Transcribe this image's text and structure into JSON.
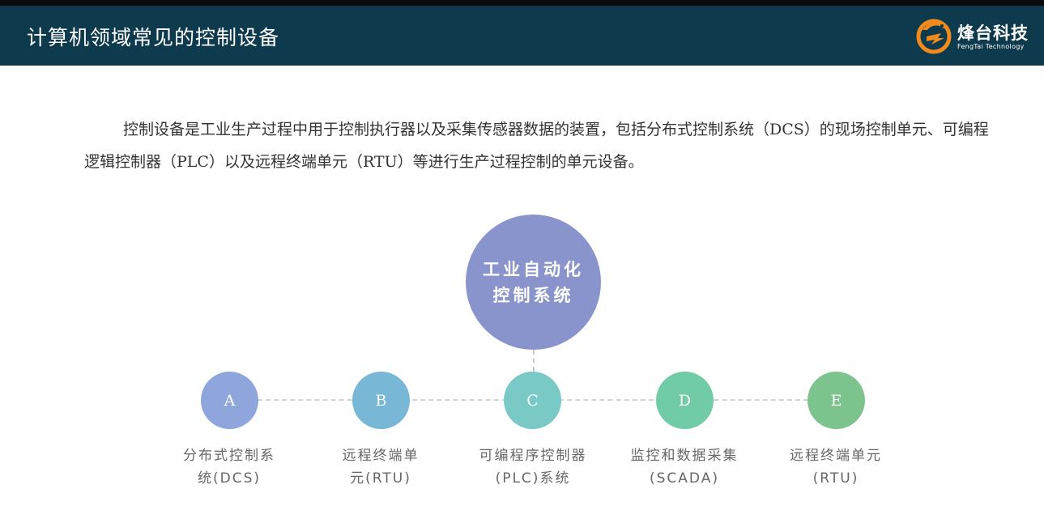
{
  "header": {
    "title": "计算机领域常见的控制设备",
    "logo_name": "烽台科技",
    "logo_sub": "FengTai Technology"
  },
  "intro": "控制设备是工业生产过程中用于控制执行器以及采集传感器数据的装置，包括分布式控制系统（DCS）的现场控制单元、可编程逻辑控制器（PLC）以及远程终端单元（RTU）等进行生产过程控制的单元设备。",
  "diagram": {
    "hub_lines": [
      "工业自动化",
      "控制系统"
    ],
    "nodes": [
      {
        "letter": "A",
        "label_lines": [
          "分布式控制系",
          "统(DCS)"
        ],
        "color": "#8fa6dd"
      },
      {
        "letter": "B",
        "label_lines": [
          "远程终端单",
          "元(RTU)"
        ],
        "color": "#79b7d7"
      },
      {
        "letter": "C",
        "label_lines": [
          "可编程序控制器",
          "(PLC)系统"
        ],
        "color": "#79cac6"
      },
      {
        "letter": "D",
        "label_lines": [
          "监控和数据采集",
          "(SCADA)"
        ],
        "color": "#72cba7"
      },
      {
        "letter": "E",
        "label_lines": [
          "远程终端单元",
          "(RTU)"
        ],
        "color": "#7dc38e"
      }
    ]
  },
  "colors": {
    "header_bg": "#0e3a4e",
    "hub": "#8a94cc",
    "logo_orange": "#f08a1c"
  }
}
